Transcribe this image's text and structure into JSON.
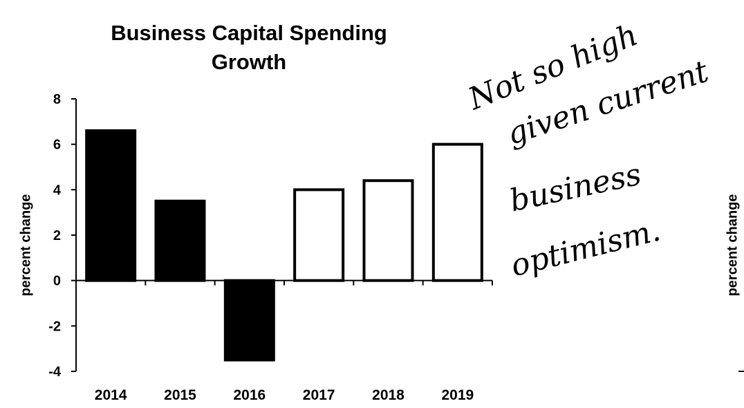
{
  "chart_data": {
    "type": "bar",
    "title": "Business Capital Spending Growth",
    "title_lines": [
      "Business Capital Spending",
      "Growth"
    ],
    "ylabel": "percent change",
    "xlabel": "",
    "categories": [
      "2014",
      "2015",
      "2016",
      "2017",
      "2018",
      "2019"
    ],
    "values": [
      6.6,
      3.5,
      -3.5,
      4.0,
      4.4,
      6.0
    ],
    "bar_style": [
      "filled",
      "filled",
      "filled",
      "outline",
      "outline",
      "outline"
    ],
    "ylim": [
      -4,
      8
    ],
    "yticks": [
      8,
      6,
      4,
      2,
      0,
      -2,
      -4
    ],
    "grid": false,
    "colors": {
      "filled": "#000000",
      "outline_fill": "#ffffff",
      "stroke": "#000000"
    }
  },
  "second_chart_ylabel": "percent change",
  "annotation": {
    "lines": [
      "Not so high",
      "given current",
      "business",
      "optimism."
    ]
  }
}
